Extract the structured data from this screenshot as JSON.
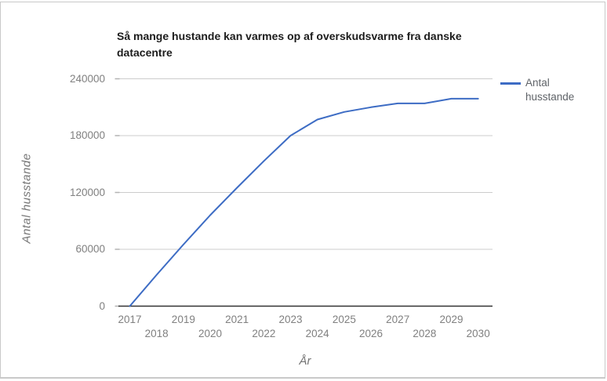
{
  "page": {
    "background": "#ffffff",
    "border_color": "#c9c9c9"
  },
  "chart": {
    "title": "Så mange hustande kan varmes op af overskudsvarme fra danske datacentre",
    "y_axis_title": "Antal husstande",
    "x_axis_title": "År",
    "legend": {
      "label": "Antal husstande"
    },
    "colors": {
      "series_line": "#3d6cc4",
      "gridline": "#cccccc",
      "tick_mark": "#b3b3b3",
      "baseline_axis": "#333333",
      "tick_label_text": "#808080",
      "title_text": "#1c1c1c",
      "axis_title_text": "#757575",
      "legend_text": "#5f6368"
    }
  },
  "chart_data": {
    "type": "line",
    "title": "Så mange hustande kan varmes op af overskudsvarme fra danske datacentre",
    "xlabel": "År",
    "ylabel": "Antal husstande",
    "x": [
      2017,
      2018,
      2019,
      2020,
      2021,
      2022,
      2023,
      2024,
      2025,
      2026,
      2027,
      2028,
      2029,
      2030
    ],
    "series": [
      {
        "name": "Antal husstande",
        "values": [
          0,
          33000,
          65000,
          96000,
          125000,
          153000,
          180000,
          197000,
          205000,
          210000,
          214000,
          214000,
          219000,
          219000
        ]
      }
    ],
    "ylim": [
      0,
      240000
    ],
    "yticks": [
      0,
      60000,
      120000,
      180000,
      240000
    ],
    "ytick_labels": [
      "0",
      "60000",
      "120000",
      "180000",
      "240000"
    ],
    "grid": true,
    "legend_position": "right",
    "x_labels_staggered": true
  }
}
